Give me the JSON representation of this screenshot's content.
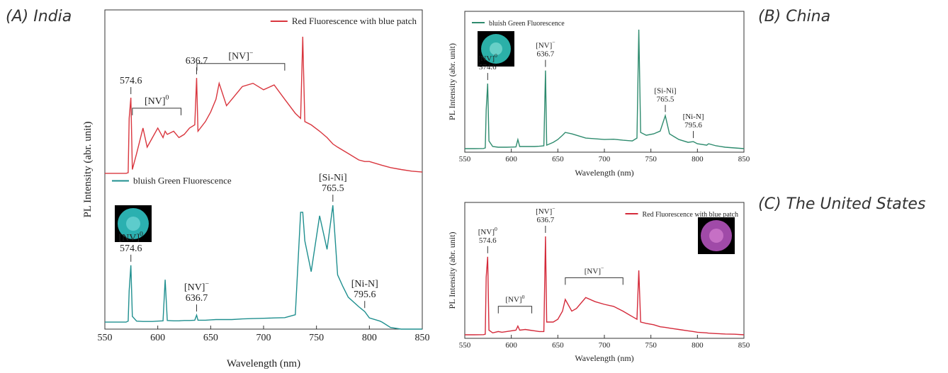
{
  "chart_data": [
    {
      "type": "line",
      "title": "(A) India",
      "x_label": "Wavelength (nm)",
      "y_label": "PL Intensity (abr. unit)",
      "x": [
        550,
        560,
        570,
        572,
        573,
        574.6,
        576,
        580,
        586,
        590,
        595,
        600,
        605,
        607,
        609,
        615,
        620,
        625,
        630,
        635,
        636.7,
        638,
        645,
        650,
        655,
        658,
        665,
        670,
        680,
        690,
        700,
        710,
        720,
        730,
        735,
        737,
        739,
        745,
        753,
        760,
        765.5,
        770,
        775,
        780,
        790,
        795.6,
        800,
        810,
        812,
        820,
        830,
        840,
        850
      ],
      "xlim": [
        550,
        850
      ],
      "xticks": [
        550,
        600,
        650,
        700,
        750,
        800,
        850
      ],
      "ylim": [
        0,
        100
      ],
      "series": [
        {
          "name": "Red Fluorescence with blue patch",
          "color": "#d9363e",
          "legend": "upper right",
          "values": [
            48.8,
            48.8,
            48.8,
            49,
            66,
            72.5,
            50,
            55,
            63,
            57,
            60,
            63,
            60,
            62,
            61,
            62,
            60,
            61,
            63,
            64,
            78.7,
            62,
            65,
            68,
            72,
            77,
            70,
            72,
            76,
            77,
            75,
            76.5,
            72,
            67.6,
            66,
            91.6,
            65,
            64,
            62,
            60,
            58,
            57,
            56,
            55,
            53,
            52.5,
            52.5,
            51.5,
            51.3,
            50.6,
            50,
            49.5,
            49.2
          ],
          "annotations": [
            {
              "wavelength": 574.6
            },
            {
              "wavelength": 636.7
            }
          ],
          "brackets": [
            {
              "label": "[NV]",
              "charge": "0",
              "from": 576,
              "to": 622
            },
            {
              "label": "[NV]",
              "charge": "−",
              "from": 637,
              "to": 720
            }
          ]
        },
        {
          "name": "bluish Green Fluorescence",
          "color": "#1f8f8f",
          "legend": "upper left",
          "values": [
            2.2,
            2.2,
            2.2,
            2.5,
            12,
            20,
            4,
            2.5,
            2.4,
            2.4,
            2.4,
            2.5,
            2.6,
            15.5,
            2.7,
            2.6,
            2.6,
            2.7,
            2.7,
            2.8,
            4.4,
            2.8,
            2.8,
            2.9,
            3,
            3,
            3,
            3,
            3.2,
            3.3,
            3.4,
            3.5,
            3.6,
            4.5,
            36.6,
            36.6,
            27.7,
            18,
            35.5,
            25,
            38.8,
            17,
            13.3,
            10,
            7,
            5.5,
            3.5,
            2.5,
            2.2,
            0.5,
            0,
            0,
            0
          ],
          "annotations": [
            {
              "label": "[NV]",
              "charge": "0",
              "wavelength": 574.6
            },
            {
              "label": "[NV]",
              "charge": "−",
              "wavelength": 636.7
            },
            {
              "label": "[Si-Ni]",
              "wavelength": 765.5
            },
            {
              "label": "[Ni-N]",
              "wavelength": 795.6
            }
          ]
        }
      ]
    },
    {
      "type": "line",
      "title": "(B) China",
      "x_label": "Wavelength (nm)",
      "y_label": "PL Intensity (abr. unit)",
      "x": [
        550,
        560,
        570,
        572,
        573,
        574.6,
        576,
        580,
        586,
        590,
        595,
        600,
        605,
        607,
        609,
        615,
        620,
        625,
        630,
        635,
        636.7,
        638,
        645,
        650,
        655,
        658,
        665,
        670,
        680,
        690,
        700,
        710,
        720,
        730,
        735,
        737,
        739,
        745,
        753,
        760,
        765.5,
        770,
        775,
        780,
        790,
        795.6,
        800,
        810,
        812,
        820,
        830,
        840,
        850
      ],
      "xlim": [
        550,
        850
      ],
      "xticks": [
        550,
        600,
        650,
        700,
        750,
        800,
        850
      ],
      "ylim": [
        0,
        100
      ],
      "series": [
        {
          "name": "bluish Green Fluorescence",
          "color": "#2e8b6e",
          "legend": "upper left",
          "values": [
            2.5,
            2.5,
            2.6,
            3,
            30,
            48.7,
            8,
            4,
            3.5,
            3.5,
            3.5,
            3.6,
            3.7,
            9,
            4,
            4,
            4,
            4,
            4.2,
            4.5,
            58,
            5,
            7,
            9,
            12,
            14,
            13,
            12,
            10,
            9.5,
            9,
            9.2,
            8.5,
            8,
            10,
            87,
            14,
            12,
            13,
            15,
            26,
            13,
            11,
            9,
            7,
            7.5,
            6,
            5,
            6,
            4.5,
            3.5,
            3,
            2.5
          ],
          "annotations": [
            {
              "label": "[NV]",
              "charge": "0",
              "wavelength": 574.6
            },
            {
              "label": "[NV]",
              "charge": "−",
              "wavelength": 636.7
            },
            {
              "label": "[Si-Ni]",
              "wavelength": 765.5
            },
            {
              "label": "[Ni-N]",
              "wavelength": 795.6
            }
          ]
        }
      ]
    },
    {
      "type": "line",
      "title": "(C) The United States",
      "x_label": "Wavelength (nm)",
      "y_label": "PL Intensity (abr. unit)",
      "x": [
        550,
        560,
        570,
        572,
        573,
        574.6,
        576,
        580,
        586,
        590,
        595,
        600,
        605,
        607,
        609,
        615,
        620,
        625,
        630,
        635,
        636.7,
        638,
        645,
        650,
        655,
        658,
        665,
        670,
        680,
        690,
        700,
        710,
        720,
        730,
        735,
        737,
        739,
        745,
        753,
        760,
        765.5,
        770,
        775,
        780,
        790,
        795.6,
        800,
        810,
        812,
        820,
        830,
        840,
        850
      ],
      "xlim": [
        550,
        850
      ],
      "xticks": [
        550,
        600,
        650,
        700,
        750,
        800,
        850
      ],
      "ylim": [
        0,
        100
      ],
      "series": [
        {
          "name": "Red Fluorescence with blue patch",
          "color": "#d42a3a",
          "legend": "upper right",
          "values": [
            2.6,
            2.6,
            2.7,
            3,
            45,
            60,
            6,
            4,
            5,
            4.5,
            5,
            5.5,
            6,
            9,
            6,
            6.5,
            6,
            5.5,
            5,
            5,
            75,
            12,
            12,
            14,
            20,
            28.6,
            20,
            22,
            30,
            27,
            25,
            23.5,
            20,
            16,
            14,
            50,
            12,
            11,
            10,
            8.5,
            8,
            7.5,
            7,
            6.5,
            5.5,
            5,
            4.5,
            4,
            3.8,
            3.5,
            3.2,
            3,
            2.6
          ],
          "annotations": [
            {
              "label": "[NV]",
              "charge": "0",
              "wavelength": 574.6
            },
            {
              "label": "[NV]",
              "charge": "−",
              "wavelength": 636.7
            }
          ],
          "brackets": [
            {
              "label": "[NV]",
              "charge": "0",
              "from": 586,
              "to": 622
            },
            {
              "label": "[NV]",
              "charge": "−",
              "from": 658,
              "to": 720
            }
          ]
        }
      ]
    }
  ]
}
